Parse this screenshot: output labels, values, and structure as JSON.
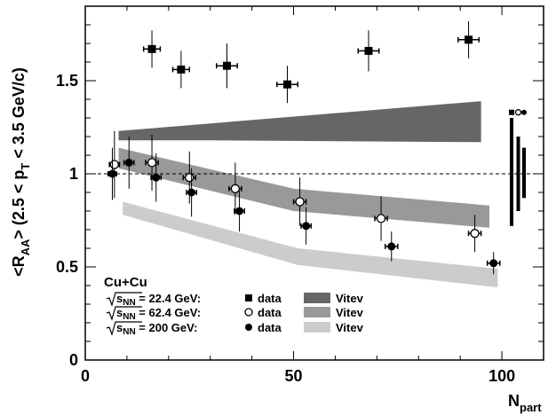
{
  "chart_data": {
    "type": "scatter",
    "x_axis": {
      "label_main": "N",
      "label_sub": "part",
      "range": [
        0,
        110
      ],
      "ticks": [
        0,
        50,
        100
      ],
      "tick_labels": [
        "0",
        "50",
        "100"
      ]
    },
    "y_axis": {
      "label_main": "<R",
      "label_sub1": "AA",
      "label_mid": "> (2.5 < p",
      "label_sub2": "T",
      "label_end": " < 3.5 GeV/c)",
      "range": [
        0,
        1.9
      ],
      "ticks": [
        0,
        0.5,
        1,
        1.5
      ],
      "tick_labels": [
        "0",
        "0.5",
        "1",
        "1.5"
      ]
    },
    "reference_line": 1,
    "series": [
      {
        "name": "data",
        "energy": "22.4 GeV",
        "marker": "square",
        "points": [
          {
            "x": 16,
            "y": 1.67,
            "xerr": 2.0,
            "yerr": 0.1
          },
          {
            "x": 23,
            "y": 1.56,
            "xerr": 2.0,
            "yerr": 0.1
          },
          {
            "x": 34,
            "y": 1.58,
            "xerr": 2.5,
            "yerr": 0.12
          },
          {
            "x": 48.5,
            "y": 1.48,
            "xerr": 2.5,
            "yerr": 0.1
          },
          {
            "x": 68,
            "y": 1.66,
            "xerr": 2.5,
            "yerr": 0.11
          },
          {
            "x": 92,
            "y": 1.72,
            "xerr": 2.5,
            "yerr": 0.1
          }
        ]
      },
      {
        "name": "data",
        "energy": "62.4 GeV",
        "marker": "open-circle",
        "points": [
          {
            "x": 7,
            "y": 1.05,
            "xerr": 1.2,
            "yerr": 0.18
          },
          {
            "x": 16,
            "y": 1.06,
            "xerr": 1.5,
            "yerr": 0.15
          },
          {
            "x": 25,
            "y": 0.98,
            "xerr": 1.5,
            "yerr": 0.14
          },
          {
            "x": 36,
            "y": 0.92,
            "xerr": 1.5,
            "yerr": 0.14
          },
          {
            "x": 51.5,
            "y": 0.85,
            "xerr": 1.5,
            "yerr": 0.13
          },
          {
            "x": 71,
            "y": 0.76,
            "xerr": 1.5,
            "yerr": 0.12
          },
          {
            "x": 93.5,
            "y": 0.68,
            "xerr": 1.5,
            "yerr": 0.1
          }
        ]
      },
      {
        "name": "data",
        "energy": "200 GeV",
        "marker": "filled-circle",
        "points": [
          {
            "x": 6.5,
            "y": 1.0,
            "xerr": 1.0,
            "yerr": 0.14
          },
          {
            "x": 10.5,
            "y": 1.06,
            "xerr": 1.2,
            "yerr": 0.14
          },
          {
            "x": 17,
            "y": 0.98,
            "xerr": 1.2,
            "yerr": 0.13
          },
          {
            "x": 25.5,
            "y": 0.9,
            "xerr": 1.2,
            "yerr": 0.13
          },
          {
            "x": 37,
            "y": 0.8,
            "xerr": 1.2,
            "yerr": 0.11
          },
          {
            "x": 53,
            "y": 0.72,
            "xerr": 1.2,
            "yerr": 0.1
          },
          {
            "x": 73.5,
            "y": 0.61,
            "xerr": 1.5,
            "yerr": 0.08
          },
          {
            "x": 98,
            "y": 0.52,
            "xerr": 1.5,
            "yerr": 0.06
          }
        ]
      }
    ],
    "bands": [
      {
        "name": "Vitev",
        "energy": "22.4 GeV",
        "color": "#666666",
        "upper": [
          [
            8,
            1.23
          ],
          [
            95,
            1.39
          ]
        ],
        "lower": [
          [
            8,
            1.18
          ],
          [
            30,
            1.18
          ],
          [
            95,
            1.17
          ]
        ]
      },
      {
        "name": "Vitev",
        "energy": "62.4 GeV",
        "color": "#999999",
        "upper": [
          [
            8,
            1.14
          ],
          [
            50,
            0.92
          ],
          [
            97,
            0.83
          ]
        ],
        "lower": [
          [
            8,
            1.03
          ],
          [
            50,
            0.8
          ],
          [
            97,
            0.71
          ]
        ]
      },
      {
        "name": "Vitev",
        "energy": "200 GeV",
        "color": "#cccccc",
        "upper": [
          [
            9,
            0.85
          ],
          [
            51,
            0.6
          ],
          [
            99,
            0.49
          ]
        ],
        "lower": [
          [
            9,
            0.78
          ],
          [
            51,
            0.51
          ],
          [
            99,
            0.39
          ]
        ]
      }
    ],
    "systematic_bars": [
      {
        "marker": "square",
        "low": 0.72,
        "high": 1.3,
        "width": 4
      },
      {
        "marker": "open-circle",
        "low": 0.8,
        "high": 1.2,
        "width": 4
      },
      {
        "marker": "filled-circle",
        "low": 0.87,
        "high": 1.14,
        "width": 4
      }
    ],
    "legend": {
      "heading": "Cu+Cu",
      "sqrt_label": "s",
      "sqrt_sub": "NN",
      "placement": "bottom-left",
      "rows": [
        {
          "energy_text": " = 22.4 GeV:",
          "marker": "square",
          "data_label": "data",
          "band_color": "#666666",
          "band_label": "Vitev"
        },
        {
          "energy_text": " = 62.4 GeV:",
          "marker": "open-circle",
          "data_label": "data",
          "band_color": "#999999",
          "band_label": "Vitev"
        },
        {
          "energy_text": " = 200 GeV:",
          "marker": "filled-circle",
          "data_label": "data",
          "band_color": "#cccccc",
          "band_label": "Vitev"
        }
      ]
    }
  }
}
